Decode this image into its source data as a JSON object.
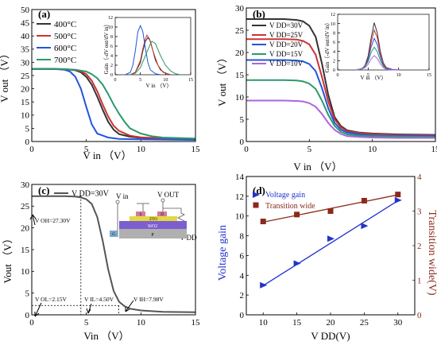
{
  "chart_data": [
    {
      "panel_label": "(a)",
      "type": "line",
      "xlabel": "V in （V）",
      "ylabel": "V out （V）",
      "xlim": [
        0,
        15
      ],
      "ylim": [
        0,
        50
      ],
      "xticks": [
        0,
        5,
        10,
        15
      ],
      "yticks": [
        0,
        5,
        10,
        15,
        20,
        25,
        30,
        35,
        40,
        45,
        50
      ],
      "legend_position": "top-left",
      "series": [
        {
          "name": "400°C",
          "color": "#333333",
          "x": [
            0,
            2,
            3,
            4,
            4.5,
            5,
            5.5,
            6,
            6.5,
            7,
            7.5,
            8,
            9,
            10,
            12,
            15
          ],
          "y": [
            27.5,
            27.5,
            27.4,
            27.0,
            26.2,
            24.5,
            21.5,
            17.0,
            12.0,
            7.5,
            4.5,
            2.8,
            1.8,
            1.4,
            1.2,
            1.0
          ]
        },
        {
          "name": "500°C",
          "color": "#cc3333",
          "x": [
            0,
            2,
            3,
            4,
            4.5,
            5,
            5.5,
            6,
            6.5,
            7,
            7.5,
            8,
            9,
            10,
            12,
            15
          ],
          "y": [
            27.5,
            27.5,
            27.4,
            27.1,
            26.6,
            25.5,
            23.0,
            19.0,
            14.0,
            9.5,
            6.0,
            4.0,
            2.2,
            1.6,
            1.2,
            1.0
          ]
        },
        {
          "name": "600°C",
          "color": "#2255dd",
          "x": [
            0,
            2,
            3,
            3.5,
            4,
            4.5,
            5,
            5.5,
            6,
            7,
            8,
            10,
            15
          ],
          "y": [
            27.5,
            27.5,
            27.2,
            26.5,
            24.5,
            20.0,
            13.0,
            6.5,
            3.0,
            1.5,
            1.0,
            0.8,
            0.6
          ]
        },
        {
          "name": "700°C",
          "color": "#2a9a6a",
          "x": [
            0,
            2,
            3,
            4,
            5,
            5.5,
            6,
            6.5,
            7,
            7.5,
            8,
            8.5,
            9,
            10,
            11,
            12,
            15
          ],
          "y": [
            27.5,
            27.5,
            27.4,
            27.2,
            26.5,
            25.5,
            24.0,
            21.5,
            18.0,
            14.0,
            10.5,
            7.5,
            5.0,
            3.0,
            2.0,
            1.5,
            1.1
          ]
        }
      ],
      "inset": {
        "xlabel": "V in （V）",
        "ylabel": "Gain（-dV out/dV in）",
        "xlim": [
          0,
          15
        ],
        "ylim": [
          0,
          12
        ],
        "xticks": [
          0,
          5,
          10,
          15
        ],
        "yticks": [
          0,
          2,
          4,
          6,
          8,
          10,
          12
        ],
        "series": [
          {
            "color": "#333333",
            "x": [
              3,
              4,
              5,
              5.5,
              6,
              6.5,
              7,
              7.5,
              8,
              9,
              10,
              11
            ],
            "y": [
              0,
              0.5,
              2.5,
              5,
              7,
              7.8,
              7,
              5,
              3,
              1,
              0.3,
              0
            ]
          },
          {
            "color": "#cc3333",
            "x": [
              3,
              4,
              5,
              5.5,
              6,
              6.3,
              6.8,
              7.5,
              8.5,
              9.5,
              11
            ],
            "y": [
              0,
              0.5,
              3,
              5.5,
              7.5,
              8.3,
              7.5,
              5,
              2,
              0.5,
              0
            ]
          },
          {
            "color": "#2255dd",
            "x": [
              2,
              3,
              3.5,
              4,
              4.5,
              5,
              5.5,
              6,
              6.5,
              7,
              8,
              9
            ],
            "y": [
              0,
              0.5,
              2,
              5,
              9,
              10.3,
              9,
              5.5,
              2.5,
              1,
              0.2,
              0
            ]
          },
          {
            "color": "#2a9a6a",
            "x": [
              3,
              4,
              5,
              6,
              7,
              7.3,
              8,
              9,
              10,
              11,
              12,
              13
            ],
            "y": [
              0,
              0.3,
              1.5,
              4,
              6.5,
              7,
              6.5,
              4,
              2,
              0.8,
              0.2,
              0
            ]
          }
        ]
      }
    },
    {
      "panel_label": "(b)",
      "type": "line",
      "xlabel": "V in （V）",
      "ylabel": "V out （V）",
      "xlim": [
        0,
        15
      ],
      "ylim": [
        0,
        30
      ],
      "xticks": [
        0,
        5,
        10,
        15
      ],
      "yticks": [
        0,
        5,
        10,
        15,
        20,
        25,
        30
      ],
      "legend_position": "top-left",
      "series": [
        {
          "name": "V DD=30V",
          "color": "#333333",
          "x": [
            0,
            3,
            4,
            4.5,
            5,
            5.5,
            6,
            6.5,
            7,
            7.5,
            8,
            9,
            10,
            12,
            15
          ],
          "y": [
            27.5,
            27.5,
            27.3,
            27.0,
            26.0,
            23.5,
            17.5,
            10.5,
            5.5,
            3.5,
            2.5,
            2.0,
            1.8,
            1.6,
            1.5
          ]
        },
        {
          "name": "V DD=25V",
          "color": "#cc3333",
          "x": [
            0,
            3,
            4,
            4.5,
            5,
            5.5,
            6,
            6.5,
            7,
            7.5,
            8,
            9,
            10,
            12,
            15
          ],
          "y": [
            23.0,
            23.0,
            22.9,
            22.6,
            21.8,
            19.5,
            14.5,
            9.0,
            5.0,
            3.2,
            2.3,
            1.9,
            1.7,
            1.5,
            1.4
          ]
        },
        {
          "name": "V DD=20V",
          "color": "#2255dd",
          "x": [
            0,
            3,
            4,
            4.5,
            5,
            5.5,
            6,
            6.5,
            7,
            7.5,
            8,
            9,
            10,
            12,
            15
          ],
          "y": [
            18.3,
            18.3,
            18.2,
            18.0,
            17.4,
            15.8,
            12.0,
            7.5,
            4.2,
            2.7,
            2.0,
            1.6,
            1.4,
            1.3,
            1.2
          ]
        },
        {
          "name": "V DD=15V",
          "color": "#2a9a6a",
          "x": [
            0,
            3,
            4,
            4.5,
            5,
            5.5,
            6,
            6.5,
            7,
            7.5,
            8,
            9,
            10,
            12,
            15
          ],
          "y": [
            13.8,
            13.8,
            13.7,
            13.5,
            13.0,
            11.8,
            9.2,
            6.0,
            3.5,
            2.2,
            1.6,
            1.3,
            1.2,
            1.1,
            1.0
          ]
        },
        {
          "name": "V DD=10V",
          "color": "#aa66dd",
          "x": [
            0,
            3,
            4,
            4.5,
            5,
            5.5,
            6,
            6.5,
            7,
            7.5,
            8,
            9,
            10,
            12,
            15
          ],
          "y": [
            9.2,
            9.2,
            9.1,
            9.0,
            8.6,
            7.8,
            6.2,
            4.2,
            2.6,
            1.7,
            1.2,
            1.0,
            0.9,
            0.8,
            0.8
          ]
        }
      ],
      "inset": {
        "xlabel": "V in （V）",
        "ylabel": "Gain（-dV out/dV in）",
        "xlim": [
          0,
          15
        ],
        "ylim": [
          0,
          12
        ],
        "xticks": [
          0,
          5,
          10,
          15
        ],
        "yticks": [
          0,
          2,
          4,
          6,
          8,
          10,
          12
        ],
        "series": [
          {
            "color": "#333333",
            "x": [
              3,
              4,
              4.5,
              5,
              5.5,
              6,
              6.5,
              7,
              7.5,
              8,
              9,
              10
            ],
            "y": [
              0,
              0.3,
              1,
              3,
              7,
              10.2,
              8,
              4,
              1.5,
              0.5,
              0.1,
              0
            ]
          },
          {
            "color": "#cc3333",
            "x": [
              3,
              4,
              4.5,
              5,
              5.5,
              6,
              6.5,
              7,
              7.5,
              8,
              9,
              10
            ],
            "y": [
              0,
              0.3,
              0.9,
              2.5,
              6,
              8.6,
              7,
              3.5,
              1.3,
              0.4,
              0.1,
              0
            ]
          },
          {
            "color": "#2255dd",
            "x": [
              3,
              4,
              4.5,
              5,
              5.5,
              6,
              6.5,
              7,
              7.5,
              8,
              9,
              10
            ],
            "y": [
              0,
              0.3,
              0.8,
              2.2,
              5,
              6.8,
              5.5,
              2.8,
              1,
              0.3,
              0.1,
              0
            ]
          },
          {
            "color": "#2a9a6a",
            "x": [
              3,
              4,
              4.5,
              5,
              5.5,
              6,
              6.5,
              7,
              7.5,
              8,
              9,
              10
            ],
            "y": [
              0,
              0.3,
              0.7,
              1.8,
              3.8,
              4.9,
              4,
              2,
              0.8,
              0.2,
              0,
              0
            ]
          },
          {
            "color": "#aa66dd",
            "x": [
              3,
              4,
              4.5,
              5,
              5.5,
              6,
              6.5,
              7,
              7.5,
              8,
              9,
              10
            ],
            "y": [
              0,
              0.2,
              0.5,
              1.2,
              2.4,
              3.1,
              2.5,
              1.3,
              0.5,
              0.1,
              0,
              0
            ]
          }
        ]
      }
    },
    {
      "panel_label": "(c)",
      "type": "line",
      "xlabel": "Vin （V）",
      "ylabel": "Vout （V）",
      "xlim": [
        0,
        15
      ],
      "ylim": [
        0,
        30
      ],
      "xticks": [
        0,
        5,
        10,
        15
      ],
      "yticks": [
        0,
        5,
        10,
        15,
        20,
        25,
        30
      ],
      "legend_position": "top-left",
      "series": [
        {
          "name": "V DD=30V",
          "color": "#555555",
          "x": [
            0,
            3,
            4,
            4.5,
            5,
            5.5,
            6,
            6.5,
            7,
            7.5,
            8,
            8.5,
            9,
            10,
            12,
            15
          ],
          "y": [
            27.3,
            27.3,
            27.2,
            27.0,
            26.6,
            25.5,
            22.5,
            17.0,
            10.5,
            5.5,
            3.0,
            2.0,
            1.4,
            1.0,
            0.7,
            0.6
          ]
        }
      ],
      "annotations": [
        "V OH=27.30V",
        "V OL=2.15V",
        "V IL=4.50V",
        "V IH=7.98V"
      ],
      "schematic_labels": {
        "vin": "V in",
        "vout": "V OUT",
        "vdd": "V DD",
        "s": "S",
        "d": "D",
        "zto": "ZTO",
        "sio2": "SiO2",
        "p": "P",
        "g": "G"
      }
    },
    {
      "panel_label": "(d)",
      "type": "scatter",
      "xlabel": "V DD(V)",
      "ylabel": "Voltage gain",
      "y2label": "Transition wide(V)",
      "xlim": [
        7.5,
        32.5
      ],
      "ylim": [
        0,
        14
      ],
      "y2lim": [
        0,
        4
      ],
      "xticks": [
        10,
        15,
        20,
        25,
        30
      ],
      "yticks": [
        0,
        2,
        4,
        6,
        8,
        10,
        12,
        14
      ],
      "y2ticks": [
        0,
        1,
        2,
        3,
        4
      ],
      "legend_position": "top-left",
      "series": [
        {
          "name": "Voltage gain",
          "color": "#2233cc",
          "axis": "left",
          "marker": "triangle",
          "x": [
            10,
            15,
            20,
            25,
            30
          ],
          "y": [
            3.0,
            5.2,
            7.7,
            9.0,
            11.6
          ]
        },
        {
          "name": "Transition wide",
          "color": "#8b2a1a",
          "axis": "right",
          "marker": "square",
          "x": [
            10,
            15,
            20,
            25,
            30
          ],
          "y": [
            2.7,
            2.9,
            3.0,
            3.3,
            3.48
          ]
        }
      ]
    }
  ]
}
